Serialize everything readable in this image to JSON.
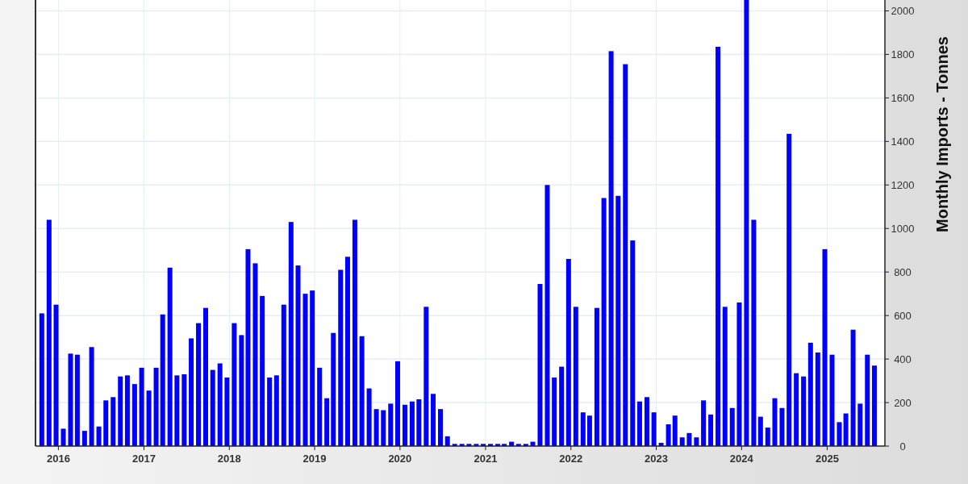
{
  "chart_data": {
    "type": "bar",
    "ylabel": "Monthly Imports - Tonnes",
    "x": [
      "2015-10-22",
      "2015-11-22",
      "2015-12-22",
      "2016-01-22",
      "2016-02-22",
      "2016-03-22",
      "2016-04-22",
      "2016-05-22",
      "2016-06-22",
      "2016-07-22",
      "2016-08-22",
      "2016-09-22",
      "2016-10-22",
      "2016-11-22",
      "2016-12-22",
      "2017-01-22",
      "2017-02-22",
      "2017-03-22",
      "2017-04-22",
      "2017-05-22",
      "2017-06-22",
      "2017-07-22",
      "2017-08-22",
      "2017-09-22",
      "2017-10-22",
      "2017-11-22",
      "2017-12-22",
      "2018-01-22",
      "2018-02-22",
      "2018-03-22",
      "2018-04-22",
      "2018-05-22",
      "2018-06-22",
      "2018-07-22",
      "2018-08-22",
      "2018-09-22",
      "2018-10-22",
      "2018-11-22",
      "2018-12-22",
      "2019-01-22",
      "2019-02-22",
      "2019-03-22",
      "2019-04-22",
      "2019-05-22",
      "2019-06-22",
      "2019-07-22",
      "2019-08-22",
      "2019-09-22",
      "2019-10-22",
      "2019-11-22",
      "2019-12-22",
      "2020-01-22",
      "2020-02-22",
      "2020-03-22",
      "2020-04-22",
      "2020-05-22",
      "2020-06-22",
      "2020-07-22",
      "2020-08-22",
      "2020-09-22",
      "2020-10-22",
      "2020-11-22",
      "2020-12-22",
      "2021-01-22",
      "2021-02-22",
      "2021-03-22",
      "2021-04-22",
      "2021-05-22",
      "2021-06-22",
      "2021-07-22",
      "2021-08-22",
      "2021-09-22",
      "2021-10-22",
      "2021-11-22",
      "2021-12-22",
      "2022-01-22",
      "2022-02-22",
      "2022-03-22",
      "2022-04-22",
      "2022-05-22",
      "2022-06-22",
      "2022-07-22",
      "2022-08-22",
      "2022-09-22",
      "2022-10-22",
      "2022-11-22",
      "2022-12-22",
      "2023-01-22",
      "2023-02-22",
      "2023-03-22",
      "2023-04-22",
      "2023-05-22",
      "2023-06-22",
      "2023-07-22",
      "2023-08-22",
      "2023-09-22",
      "2023-10-22",
      "2023-11-22",
      "2023-12-22",
      "2024-01-22",
      "2024-02-22",
      "2024-03-22",
      "2024-04-22",
      "2024-05-22",
      "2024-06-22",
      "2024-07-22",
      "2024-08-22",
      "2024-09-22",
      "2024-10-22",
      "2024-11-22",
      "2024-12-22",
      "2025-01-22",
      "2025-02-22",
      "2025-03-22",
      "2025-04-22",
      "2025-05-22",
      "2025-06-22",
      "2025-07-22"
    ],
    "series": [
      {
        "color": "#0000ff",
        "values": [
          610,
          1040,
          650,
          80,
          425,
          420,
          70,
          455,
          90,
          210,
          225,
          320,
          325,
          285,
          360,
          255,
          360,
          605,
          820,
          325,
          330,
          495,
          565,
          635,
          350,
          380,
          315,
          565,
          510,
          905,
          840,
          690,
          315,
          325,
          650,
          1030,
          830,
          700,
          715,
          360,
          220,
          520,
          810,
          870,
          1040,
          505,
          265,
          170,
          165,
          195,
          390,
          190,
          205,
          215,
          640,
          240,
          170,
          45,
          10,
          10,
          10,
          10,
          10,
          10,
          10,
          10,
          20,
          10,
          10,
          20,
          745,
          1200,
          315,
          365,
          860,
          640,
          155,
          140,
          635,
          1140,
          1815,
          1150,
          1755,
          945,
          205,
          225,
          155,
          15,
          100,
          140,
          40,
          60,
          40,
          210,
          145,
          1835,
          640,
          175,
          660,
          2050,
          1040,
          135,
          85,
          220,
          175,
          1435,
          335,
          320,
          475,
          430,
          905,
          420,
          110,
          150,
          535,
          195,
          420,
          370
        ]
      }
    ],
    "xlim": [
      "2015-09-25",
      "2025-09-05"
    ],
    "xticks": [
      "2016",
      "2017",
      "2018",
      "2019",
      "2020",
      "2021",
      "2022",
      "2023",
      "2024",
      "2025"
    ],
    "ylim": [
      0,
      2050
    ],
    "yticks": [
      0,
      200,
      400,
      600,
      800,
      1000,
      1200,
      1400,
      1600,
      1800,
      2000
    ],
    "grid": true
  }
}
